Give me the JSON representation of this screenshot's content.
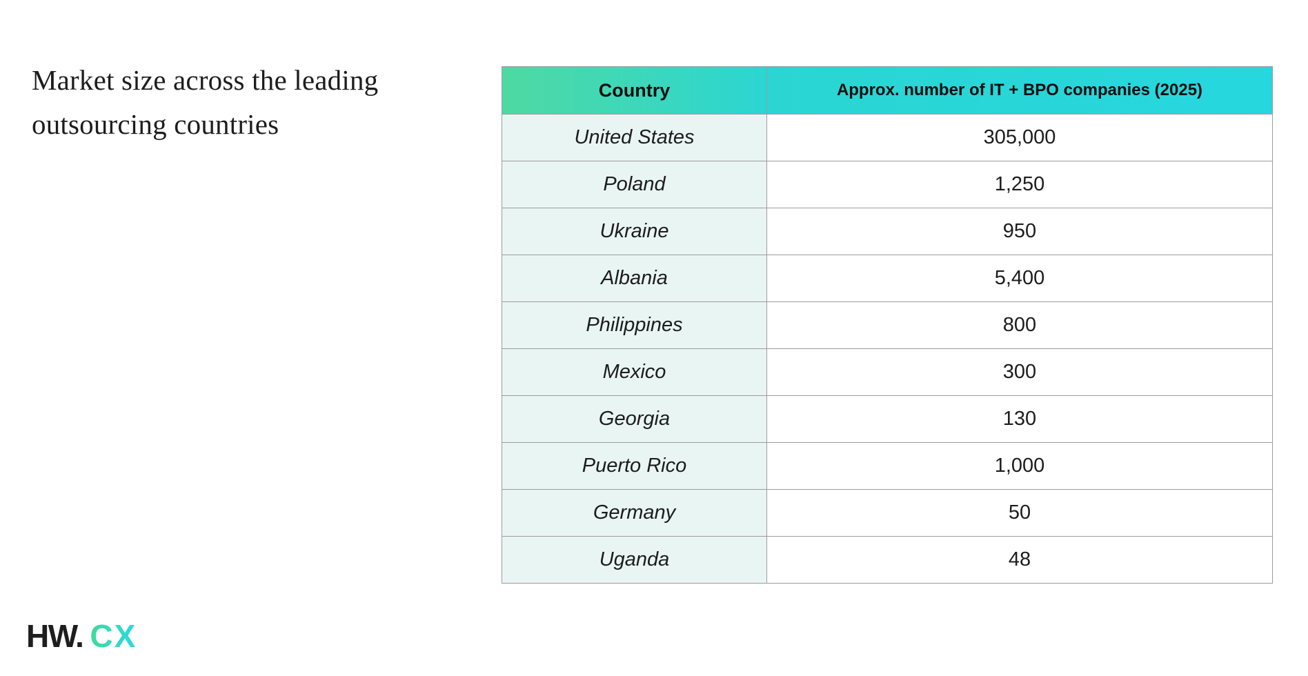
{
  "title": {
    "text": "Market size across the leading outsourcing countries"
  },
  "table": {
    "headers": {
      "country": "Country",
      "companies": "Approx. number of IT + BPO companies (2025)"
    },
    "rows": [
      {
        "country": "United States",
        "value": "305,000"
      },
      {
        "country": "Poland",
        "value": "1,250"
      },
      {
        "country": "Ukraine",
        "value": "950"
      },
      {
        "country": "Albania",
        "value": "5,400"
      },
      {
        "country": "Philippines",
        "value": "800"
      },
      {
        "country": "Mexico",
        "value": "300"
      },
      {
        "country": "Georgia",
        "value": "130"
      },
      {
        "country": "Puerto Rico",
        "value": "1,000"
      },
      {
        "country": "Germany",
        "value": "50"
      },
      {
        "country": "Uganda",
        "value": "48"
      }
    ]
  },
  "logo": {
    "primary": "HW.",
    "secondary": "CX"
  },
  "colors": {
    "header_gradient_start": "#4fd9a2",
    "header_gradient_end": "#26d7df",
    "country_cell_bg": "#e9f5f2",
    "table_border": "#9b9b9b",
    "logo_gradient_start": "#3edb99",
    "logo_gradient_end": "#2bd8e6",
    "text": "#1c1c1c"
  },
  "chart_data": {
    "type": "table",
    "title": "Market size across the leading outsourcing countries",
    "columns": [
      "Country",
      "Approx. number of IT + BPO companies (2025)"
    ],
    "categories": [
      "United States",
      "Poland",
      "Ukraine",
      "Albania",
      "Philippines",
      "Mexico",
      "Georgia",
      "Puerto Rico",
      "Germany",
      "Uganda"
    ],
    "values": [
      305000,
      1250,
      950,
      5400,
      800,
      300,
      130,
      1000,
      50,
      48
    ]
  }
}
